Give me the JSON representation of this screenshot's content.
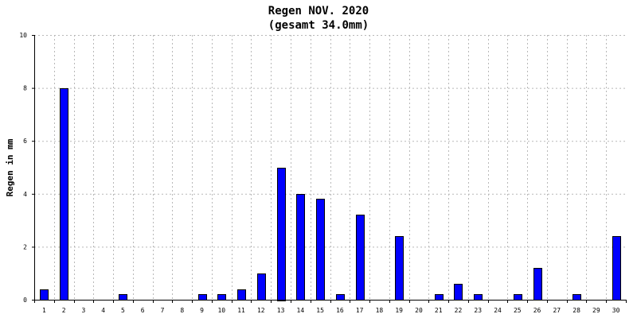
{
  "chart_data": {
    "type": "bar",
    "title": "Regen NOV. 2020",
    "subtitle": "(gesamt 34.0mm)",
    "ylabel": "Regen in mm",
    "xlabel": "",
    "ylim": [
      0,
      10
    ],
    "yticks": [
      "0",
      "2",
      "4",
      "6",
      "8",
      "10"
    ],
    "grid": true,
    "bar_color": "#0000ff",
    "categories": [
      "1",
      "2",
      "3",
      "4",
      "5",
      "6",
      "7",
      "8",
      "9",
      "10",
      "11",
      "12",
      "13",
      "14",
      "15",
      "16",
      "17",
      "18",
      "19",
      "20",
      "21",
      "22",
      "23",
      "24",
      "25",
      "26",
      "27",
      "28",
      "29",
      "30"
    ],
    "values": [
      0.4,
      8.0,
      0,
      0,
      0.2,
      0,
      0,
      0,
      0.2,
      0.2,
      0.4,
      1.0,
      5.0,
      4.0,
      3.8,
      0.2,
      3.2,
      0,
      2.4,
      0,
      0.2,
      0.6,
      0.2,
      0,
      0.2,
      1.2,
      0,
      0.2,
      0,
      2.4
    ]
  }
}
